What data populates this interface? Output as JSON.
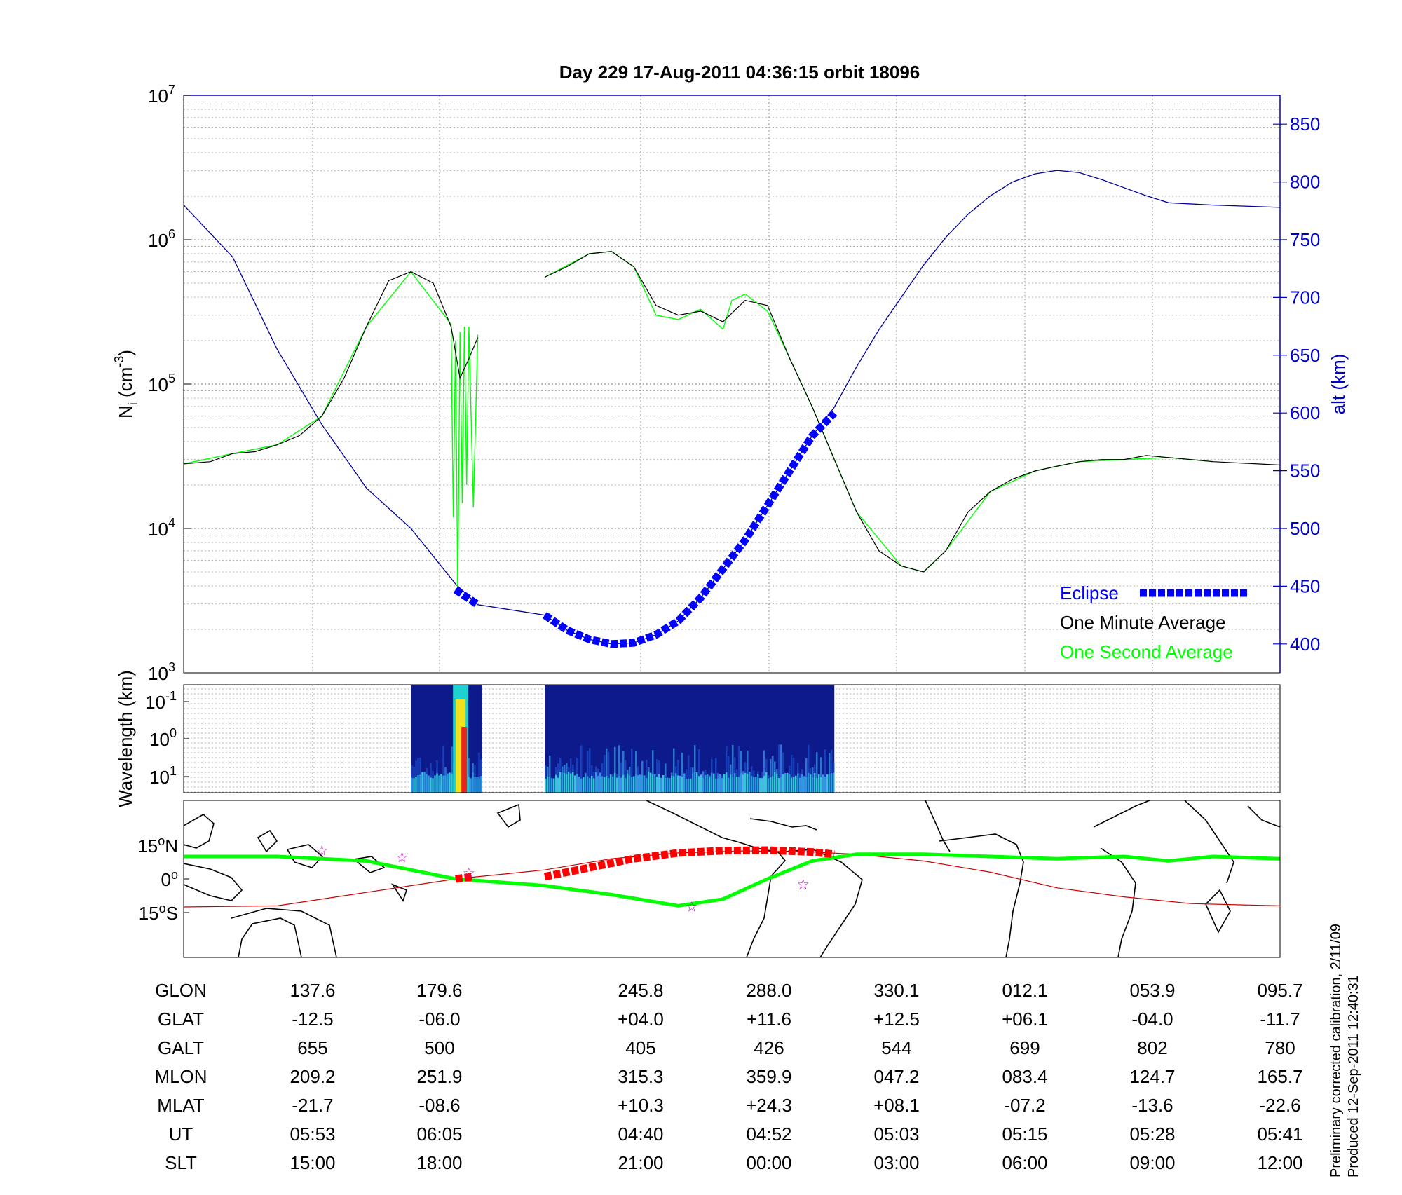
{
  "title": "Day 229  17-Aug-2011 04:36:15   orbit 18096",
  "colors": {
    "eclipse": "#0000ff",
    "one_minute": "#000000",
    "one_second": "#00ff00",
    "altitude": "#000099",
    "alt_axis": "#0000cc",
    "track": "#00ff00",
    "track_dark": "#ff0000",
    "equator": "#cc0000",
    "star": "#cc00cc"
  },
  "top_panel": {
    "ylabel_main": "N",
    "ylabel_sub": "i",
    "ylabel_unit": " (cm",
    "ylabel_exp": "-3",
    "ylabel_close": ")",
    "y2label": "alt (km)",
    "left_ticks": [
      {
        "base": "10",
        "exp": "3",
        "value": 1000
      },
      {
        "base": "10",
        "exp": "4",
        "value": 10000
      },
      {
        "base": "10",
        "exp": "5",
        "value": 100000
      },
      {
        "base": "10",
        "exp": "6",
        "value": 1000000
      },
      {
        "base": "10",
        "exp": "7",
        "value": 10000000
      }
    ],
    "right_ticks": [
      "400",
      "450",
      "500",
      "550",
      "600",
      "650",
      "700",
      "750",
      "800",
      "850"
    ],
    "legend": [
      {
        "label": "Eclipse",
        "key": "eclipse"
      },
      {
        "label": "One Minute Average",
        "key": "one_minute"
      },
      {
        "label": "One Second Average",
        "key": "one_second"
      }
    ]
  },
  "middle_panel": {
    "ylabel": "Wavelength (km)",
    "ticks": [
      {
        "base": "10",
        "exp": "-1"
      },
      {
        "base": "10",
        "exp": "0"
      },
      {
        "base": "10",
        "exp": "1"
      }
    ]
  },
  "map_panel": {
    "lat_ticks": [
      {
        "deg": "15",
        "sym": "o",
        "hemi": "N",
        "lat": 15
      },
      {
        "deg": "0",
        "sym": "o",
        "hemi": "",
        "lat": 0
      },
      {
        "deg": "15",
        "sym": "o",
        "hemi": "S",
        "lat": -15
      }
    ]
  },
  "table": {
    "row_labels": [
      "GLON",
      "GLAT",
      "GALT",
      "MLON",
      "MLAT",
      "UT",
      "SLT"
    ],
    "columns": [
      [
        "137.6",
        "-12.5",
        "655",
        "209.2",
        "-21.7",
        "05:53",
        "15:00"
      ],
      [
        "179.6",
        "-06.0",
        "500",
        "251.9",
        "-08.6",
        "06:05",
        "18:00"
      ],
      [
        "245.8",
        "+04.0",
        "405",
        "315.3",
        "+10.3",
        "04:40",
        "21:00"
      ],
      [
        "288.0",
        "+11.6",
        "426",
        "359.9",
        "+24.3",
        "04:52",
        "00:00"
      ],
      [
        "330.1",
        "+12.5",
        "544",
        "047.2",
        "+08.1",
        "05:03",
        "03:00"
      ],
      [
        "012.1",
        "+06.1",
        "699",
        "083.4",
        "-07.2",
        "05:15",
        "06:00"
      ],
      [
        "053.9",
        "-04.0",
        "802",
        "124.7",
        "-13.6",
        "05:28",
        "09:00"
      ],
      [
        "095.7",
        "-11.7",
        "780",
        "165.7",
        "-22.6",
        "05:41",
        "12:00"
      ]
    ]
  },
  "footnote": [
    "Preliminary corrected calibration, 2/11/09",
    "Produced 12-Sep-2011 12:40:31"
  ],
  "chart_data": {
    "type": "line",
    "x_axis": "SLT (hours)",
    "xlim": [
      12.9,
      37.5
    ],
    "ylim_density": [
      1000,
      10000000
    ],
    "y_scale": "log",
    "ylim_altitude": [
      375,
      875
    ],
    "grid": true,
    "legend_position": "bottom-right",
    "one_minute_average": [
      [
        12.9,
        28000
      ],
      [
        13.5,
        29000
      ],
      [
        14.0,
        33000
      ],
      [
        14.5,
        34000
      ],
      [
        15.0,
        38000
      ],
      [
        15.5,
        44000
      ],
      [
        16.0,
        60000
      ],
      [
        16.5,
        110000
      ],
      [
        17.0,
        250000
      ],
      [
        17.5,
        520000
      ],
      [
        18.0,
        600000
      ],
      [
        18.5,
        500000
      ],
      [
        18.9,
        250000
      ],
      [
        19.1,
        110000
      ],
      [
        19.3,
        150000
      ],
      [
        19.5,
        210000
      ],
      [
        21.0,
        550000
      ],
      [
        21.5,
        650000
      ],
      [
        22.0,
        800000
      ],
      [
        22.5,
        830000
      ],
      [
        23.0,
        650000
      ],
      [
        23.5,
        350000
      ],
      [
        24.0,
        300000
      ],
      [
        24.5,
        320000
      ],
      [
        25.0,
        270000
      ],
      [
        25.5,
        380000
      ],
      [
        26.0,
        350000
      ],
      [
        26.5,
        150000
      ],
      [
        27.0,
        70000
      ],
      [
        27.5,
        30000
      ],
      [
        28.0,
        13000
      ],
      [
        28.5,
        7000
      ],
      [
        29.0,
        5500
      ],
      [
        29.5,
        5000
      ],
      [
        30.0,
        7000
      ],
      [
        30.5,
        13000
      ],
      [
        31.0,
        18000
      ],
      [
        31.5,
        22000
      ],
      [
        32.0,
        25000
      ],
      [
        32.5,
        27000
      ],
      [
        33.0,
        29000
      ],
      [
        33.5,
        30000
      ],
      [
        34.0,
        30000
      ],
      [
        34.5,
        32000
      ],
      [
        35.0,
        31000
      ],
      [
        35.5,
        30000
      ],
      [
        36.0,
        29000
      ],
      [
        36.5,
        28500
      ],
      [
        37.0,
        28000
      ],
      [
        37.5,
        27500
      ]
    ],
    "one_second_average": [
      [
        12.9,
        28000
      ],
      [
        14.0,
        33000
      ],
      [
        15.0,
        38000
      ],
      [
        16.0,
        60000
      ],
      [
        17.0,
        250000
      ],
      [
        18.0,
        600000
      ],
      [
        18.9,
        260000
      ],
      [
        18.95,
        12000
      ],
      [
        19.0,
        200000
      ],
      [
        19.05,
        3500
      ],
      [
        19.1,
        230000
      ],
      [
        19.15,
        15000
      ],
      [
        19.2,
        250000
      ],
      [
        19.25,
        20000
      ],
      [
        19.3,
        250000
      ],
      [
        19.4,
        14000
      ],
      [
        19.5,
        220000
      ],
      [
        21.0,
        550000
      ],
      [
        22.0,
        800000
      ],
      [
        22.5,
        830000
      ],
      [
        23.0,
        650000
      ],
      [
        23.5,
        300000
      ],
      [
        24.0,
        280000
      ],
      [
        24.5,
        330000
      ],
      [
        25.0,
        240000
      ],
      [
        25.2,
        380000
      ],
      [
        25.5,
        420000
      ],
      [
        26.0,
        320000
      ],
      [
        26.5,
        150000
      ],
      [
        27.0,
        70000
      ],
      [
        28.0,
        13000
      ],
      [
        29.0,
        5500
      ],
      [
        29.5,
        5000
      ],
      [
        30.0,
        7000
      ],
      [
        31.0,
        18000
      ],
      [
        32.0,
        25000
      ],
      [
        33.0,
        29000
      ],
      [
        34.0,
        30000
      ],
      [
        35.0,
        31000
      ],
      [
        36.0,
        29000
      ],
      [
        37.5,
        27500
      ]
    ],
    "altitude_km": [
      [
        12.9,
        780
      ],
      [
        14.0,
        735
      ],
      [
        15.0,
        655
      ],
      [
        16.0,
        590
      ],
      [
        17.0,
        535
      ],
      [
        18.0,
        500
      ],
      [
        19.0,
        452
      ],
      [
        19.5,
        434
      ],
      [
        21.0,
        425
      ],
      [
        21.5,
        412
      ],
      [
        22.0,
        404
      ],
      [
        22.5,
        400
      ],
      [
        23.0,
        401
      ],
      [
        23.5,
        408
      ],
      [
        24.0,
        420
      ],
      [
        24.5,
        440
      ],
      [
        25.0,
        465
      ],
      [
        25.5,
        490
      ],
      [
        26.0,
        520
      ],
      [
        26.5,
        550
      ],
      [
        27.0,
        580
      ],
      [
        27.5,
        605
      ],
      [
        28.0,
        640
      ],
      [
        28.5,
        672
      ],
      [
        29.0,
        700
      ],
      [
        29.5,
        728
      ],
      [
        30.0,
        752
      ],
      [
        30.5,
        772
      ],
      [
        31.0,
        788
      ],
      [
        31.5,
        800
      ],
      [
        32.0,
        807
      ],
      [
        32.5,
        810
      ],
      [
        33.0,
        808
      ],
      [
        33.5,
        802
      ],
      [
        34.0,
        795
      ],
      [
        34.5,
        788
      ],
      [
        35.0,
        782
      ],
      [
        36.0,
        780
      ],
      [
        37.5,
        778
      ]
    ],
    "eclipse_altitude_km": [
      [
        19.0,
        447
      ],
      [
        19.5,
        434
      ],
      [
        21.0,
        425
      ],
      [
        21.5,
        412
      ],
      [
        22.0,
        404
      ],
      [
        22.5,
        400
      ],
      [
        23.0,
        401
      ],
      [
        23.5,
        408
      ],
      [
        24.0,
        420
      ],
      [
        24.5,
        440
      ],
      [
        25.0,
        465
      ],
      [
        25.5,
        490
      ],
      [
        26.0,
        520
      ],
      [
        26.5,
        550
      ],
      [
        27.0,
        580
      ],
      [
        27.5,
        600
      ]
    ],
    "spectrogram_segments_slt": [
      [
        18.0,
        19.6
      ],
      [
        21.0,
        27.5
      ]
    ],
    "track_latitude_deg": [
      [
        12.9,
        10
      ],
      [
        15.0,
        10
      ],
      [
        17.0,
        8
      ],
      [
        19.0,
        0
      ],
      [
        21.0,
        -3
      ],
      [
        22.5,
        -7
      ],
      [
        24.0,
        -12
      ],
      [
        25.0,
        -9
      ],
      [
        26.0,
        0
      ],
      [
        27.0,
        8
      ],
      [
        28.0,
        11
      ],
      [
        29.5,
        11
      ],
      [
        31.0,
        10
      ],
      [
        32.5,
        9
      ],
      [
        34.0,
        10
      ],
      [
        35.0,
        8
      ],
      [
        36.0,
        10
      ],
      [
        37.5,
        9
      ]
    ],
    "sunlit_track_latitude_deg": [
      [
        12.9,
        -12.5
      ],
      [
        15.0,
        -12
      ],
      [
        17.0,
        -6
      ],
      [
        19.0,
        0
      ],
      [
        21.0,
        4
      ],
      [
        22.5,
        9
      ],
      [
        24.0,
        11.6
      ],
      [
        25.5,
        12.5
      ],
      [
        27.0,
        12
      ],
      [
        28.0,
        11
      ],
      [
        29.5,
        8
      ],
      [
        31.0,
        3
      ],
      [
        32.5,
        -4
      ],
      [
        34.0,
        -8
      ],
      [
        35.5,
        -11
      ],
      [
        37.5,
        -12
      ]
    ],
    "eclipse_track_latitude_deg": [
      [
        19.0,
        0
      ],
      [
        19.4,
        1
      ],
      [
        21.0,
        1
      ],
      [
        22.0,
        5
      ],
      [
        23.0,
        9
      ],
      [
        24.0,
        11.6
      ],
      [
        25.0,
        12.6
      ],
      [
        26.0,
        12.8
      ],
      [
        27.0,
        12
      ],
      [
        27.5,
        11
      ]
    ],
    "magnetic_equator_crossings_slt": [
      [
        16.0,
        13
      ],
      [
        17.8,
        10
      ],
      [
        19.3,
        3
      ],
      [
        24.3,
        -12
      ],
      [
        26.8,
        -2
      ]
    ]
  }
}
